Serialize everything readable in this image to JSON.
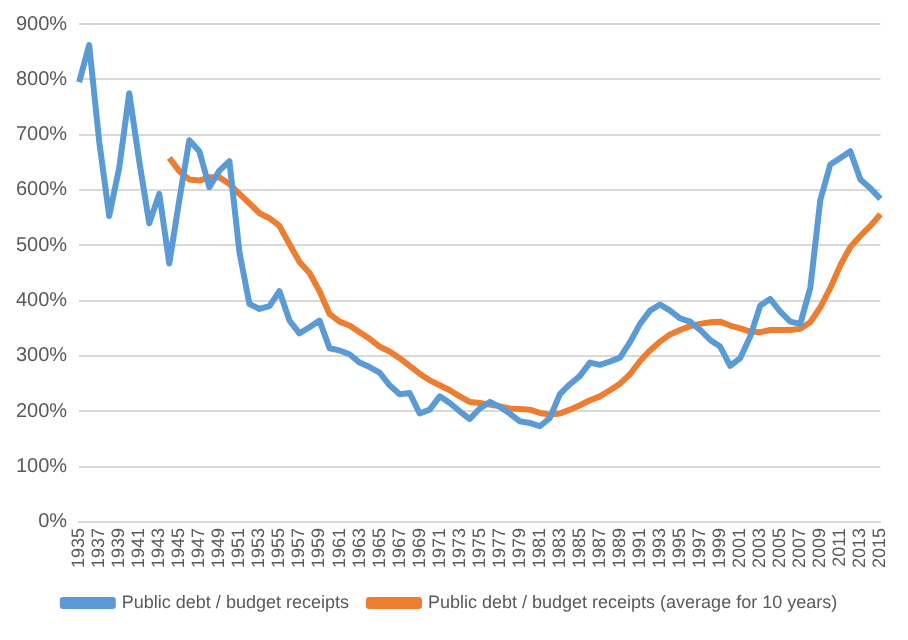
{
  "chart_data": {
    "type": "line",
    "categories": [
      "1935",
      null,
      "1937",
      null,
      "1939",
      null,
      "1941",
      null,
      "1943",
      null,
      "1945",
      null,
      "1947",
      null,
      "1949",
      null,
      "1951",
      null,
      "1953",
      null,
      "1955",
      null,
      "1957",
      null,
      "1959",
      null,
      "1961",
      null,
      "1963",
      null,
      "1965",
      null,
      "1967",
      null,
      "1969",
      null,
      "1971",
      null,
      "1973",
      null,
      "1975",
      null,
      "1977",
      null,
      "1979",
      null,
      "1981",
      null,
      "1983",
      null,
      "1985",
      null,
      "1987",
      null,
      "1989",
      null,
      "1991",
      null,
      "1993",
      null,
      "1995",
      null,
      "1997",
      null,
      "1999",
      null,
      "2001",
      null,
      "2003",
      null,
      "2005",
      null,
      "2007",
      null,
      "2009",
      null,
      "2011",
      null,
      "2013",
      null,
      "2015"
    ],
    "series": [
      {
        "name": "Public debt / budget receipts",
        "color": "#5b9bd5",
        "values": [
          795,
          862,
          688,
          553,
          640,
          775,
          652,
          540,
          593,
          467,
          582,
          690,
          670,
          605,
          635,
          652,
          488,
          394,
          385,
          390,
          417,
          364,
          341,
          352,
          364,
          314,
          310,
          303,
          288,
          280,
          270,
          247,
          231,
          233,
          196,
          203,
          227,
          215,
          200,
          186,
          205,
          217,
          208,
          196,
          182,
          179,
          173,
          188,
          231,
          249,
          264,
          288,
          284,
          290,
          297,
          325,
          358,
          382,
          393,
          382,
          368,
          362,
          347,
          329,
          317,
          282,
          296,
          335,
          391,
          403,
          380,
          362,
          358,
          423,
          582,
          646,
          658,
          670,
          619,
          603,
          584
        ]
      },
      {
        "name": "Public debt / budget receipts (average for 10 years)",
        "color": "#ed7d31",
        "values": [
          null,
          null,
          null,
          null,
          null,
          null,
          null,
          null,
          null,
          658,
          634,
          619,
          617,
          623,
          623,
          611,
          593,
          576,
          558,
          549,
          535,
          502,
          470,
          450,
          417,
          376,
          362,
          355,
          343,
          331,
          317,
          308,
          296,
          282,
          268,
          256,
          247,
          238,
          227,
          217,
          215,
          212,
          209,
          205,
          204,
          203,
          197,
          194,
          196,
          203,
          211,
          220,
          227,
          238,
          250,
          267,
          291,
          310,
          326,
          339,
          347,
          354,
          358,
          361,
          362,
          355,
          350,
          344,
          343,
          347,
          347,
          347,
          349,
          361,
          388,
          423,
          464,
          497,
          517,
          535,
          556
        ]
      }
    ],
    "ylim": [
      0,
      900
    ],
    "yticks": [
      {
        "value": 0,
        "label": "0%"
      },
      {
        "value": 100,
        "label": "100%"
      },
      {
        "value": 200,
        "label": "200%"
      },
      {
        "value": 300,
        "label": "300%"
      },
      {
        "value": 400,
        "label": "400%"
      },
      {
        "value": 500,
        "label": "500%"
      },
      {
        "value": 600,
        "label": "600%"
      },
      {
        "value": 700,
        "label": "700%"
      },
      {
        "value": 800,
        "label": "800%"
      },
      {
        "value": 900,
        "label": "900%"
      }
    ],
    "grid": "y",
    "legend": "bottom",
    "marker": "none",
    "line_style": "solid"
  }
}
